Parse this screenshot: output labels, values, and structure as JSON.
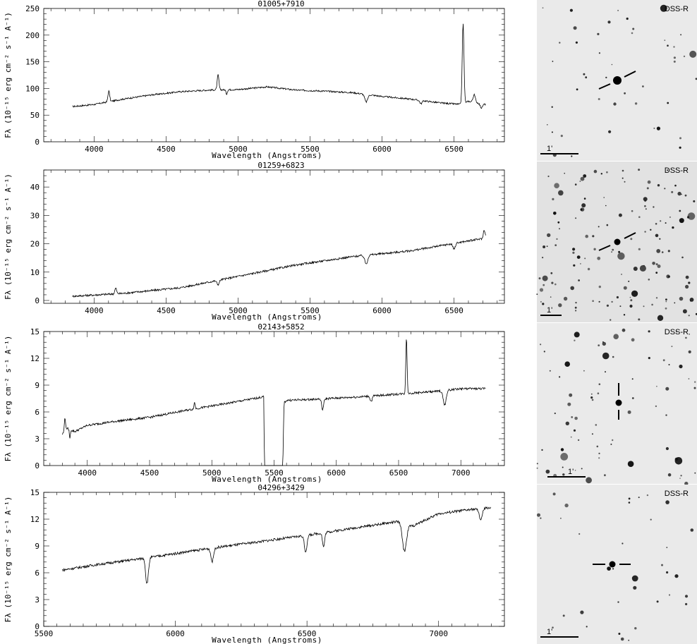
{
  "figure": {
    "ylabel": "Fλ (10⁻¹⁵ erg cm⁻² s⁻¹ A⁻¹)",
    "xlabel": "Wavelength (Angstroms)",
    "image_survey_label": "DSS-R",
    "scale_bar_label": "1'"
  },
  "chart_data": [
    {
      "type": "line",
      "title": "01005+7910",
      "xlabel": "Wavelength (Angstroms)",
      "ylabel": "Fλ (10⁻¹⁵ erg cm⁻² s⁻¹ A⁻¹)",
      "xlim": [
        3650,
        6850
      ],
      "ylim": [
        0,
        250
      ],
      "xticks": [
        4000,
        4500,
        5000,
        5500,
        6000,
        6500
      ],
      "yticks": [
        0,
        50,
        100,
        150,
        200,
        250
      ],
      "noise": 1.5,
      "series": [
        {
          "x": [
            3850,
            4000,
            4200,
            4400,
            4600,
            4800,
            5000,
            5200,
            5400,
            5600,
            5800,
            6000,
            6200,
            6400,
            6550,
            6600,
            6720
          ],
          "y": [
            66,
            70,
            80,
            88,
            94,
            97,
            98,
            103,
            97,
            95,
            92,
            85,
            80,
            73,
            70,
            76,
            70
          ],
          "features": [
            [
              4102,
              20,
              6
            ],
            [
              4861,
              28,
              6
            ],
            [
              4920,
              -8,
              5
            ],
            [
              5890,
              -14,
              10
            ],
            [
              6270,
              -6,
              8
            ],
            [
              6563,
              150,
              6
            ],
            [
              6640,
              14,
              8
            ],
            [
              6690,
              -8,
              8
            ]
          ]
        }
      ]
    },
    {
      "type": "line",
      "title": "01259+6823",
      "xlabel": "Wavelength (Angstroms)",
      "ylabel": "Fλ (10⁻¹⁵ erg cm⁻² s⁻¹ A⁻¹)",
      "xlim": [
        3650,
        6850
      ],
      "ylim": [
        -1,
        46
      ],
      "xticks": [
        4000,
        4500,
        5000,
        5500,
        6000,
        6500
      ],
      "yticks": [
        0,
        10,
        20,
        30,
        40
      ],
      "noise": 0.35,
      "series": [
        {
          "x": [
            3850,
            4200,
            4600,
            5000,
            5400,
            5800,
            6200,
            6600,
            6720
          ],
          "y": [
            1.5,
            2.5,
            4.5,
            8.5,
            12.5,
            15.5,
            17.5,
            21,
            22
          ],
          "features": [
            [
              4150,
              2,
              6
            ],
            [
              4861,
              -1.5,
              8
            ],
            [
              5890,
              -3,
              10
            ],
            [
              6500,
              -2,
              8
            ],
            [
              6710,
              3,
              6
            ]
          ]
        }
      ]
    },
    {
      "type": "line",
      "title": "02143+5852",
      "xlabel": "Wavelength (Angstroms)",
      "ylabel": "Fλ (10⁻¹⁵ erg cm⁻² s⁻¹ A⁻¹)",
      "xlim": [
        3650,
        7350
      ],
      "ylim": [
        0,
        15
      ],
      "xticks": [
        4000,
        4500,
        5000,
        5500,
        6000,
        6500,
        7000
      ],
      "yticks": [
        0,
        3,
        6,
        9,
        12,
        15
      ],
      "noise": 0.12,
      "series": [
        {
          "x": [
            3800,
            3830,
            3900,
            4000,
            4200,
            4500,
            4800,
            5100,
            5300,
            5420,
            5421,
            5570,
            5580,
            5600,
            5800,
            6200,
            6500,
            6800,
            7000,
            7200
          ],
          "y": [
            3.5,
            4.2,
            3.8,
            4.5,
            4.9,
            5.4,
            6.2,
            6.9,
            7.4,
            7.7,
            0,
            0,
            7.0,
            7.3,
            7.4,
            7.7,
            8.0,
            8.3,
            8.6,
            8.6
          ],
          "features": [
            [
              3820,
              1.5,
              4
            ],
            [
              3860,
              -1,
              4
            ],
            [
              4861,
              0.7,
              5
            ],
            [
              5890,
              -1.2,
              8
            ],
            [
              6280,
              -0.6,
              8
            ],
            [
              6563,
              6.4,
              5
            ],
            [
              6870,
              -1.6,
              12
            ]
          ]
        }
      ]
    },
    {
      "type": "line",
      "title": "04296+3429",
      "xlabel": "Wavelength (Angstroms)",
      "ylabel": "Fλ (10⁻¹⁵ erg cm⁻² s⁻¹ A⁻¹)",
      "xlim": [
        5500,
        7250
      ],
      "ylim": [
        0,
        15
      ],
      "xticks": [
        5500,
        6000,
        6500,
        7000
      ],
      "yticks": [
        0,
        3,
        6,
        9,
        12,
        15
      ],
      "noise": 0.14,
      "series": [
        {
          "x": [
            5570,
            5700,
            5900,
            6100,
            6300,
            6500,
            6700,
            6860,
            6900,
            7000,
            7100,
            7200
          ],
          "y": [
            6.3,
            6.9,
            7.7,
            8.6,
            9.4,
            10.2,
            11.1,
            11.8,
            11.2,
            12.6,
            13.0,
            13.3
          ],
          "features": [
            [
              5890,
              -2.2,
              4
            ],
            [
              5896,
              -1.5,
              4
            ],
            [
              6140,
              -1.5,
              5
            ],
            [
              6495,
              -1.8,
              5
            ],
            [
              6563,
              -1.6,
              4
            ],
            [
              6870,
              -3.2,
              8
            ],
            [
              7160,
              -1.2,
              6
            ]
          ]
        }
      ]
    }
  ],
  "panels": [
    {
      "label": "DSS-R",
      "scale": "1'"
    },
    {
      "label": "DSS-R",
      "scale": "1'"
    },
    {
      "label": "DSS-R",
      "scale": "1'"
    },
    {
      "label": "DSS-R",
      "scale": "1'"
    }
  ]
}
